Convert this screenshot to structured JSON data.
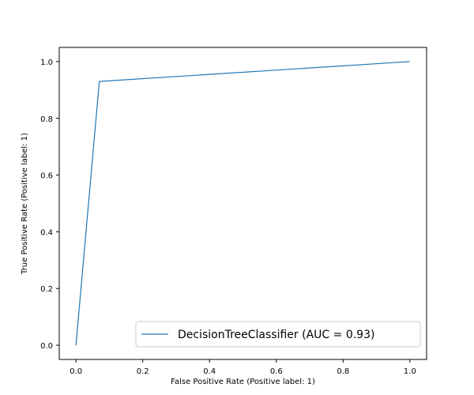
{
  "chart_data": {
    "type": "line",
    "title": "",
    "xlabel": "False Positive Rate (Positive label: 1)",
    "ylabel": "True Positive Rate (Positive label: 1)",
    "xlim": [
      -0.05,
      1.05
    ],
    "ylim": [
      -0.05,
      1.05
    ],
    "xticks": [
      0.0,
      0.2,
      0.4,
      0.6,
      0.8,
      1.0
    ],
    "yticks": [
      0.0,
      0.2,
      0.4,
      0.6,
      0.8,
      1.0
    ],
    "xtick_labels": [
      "0.0",
      "0.2",
      "0.4",
      "0.6",
      "0.8",
      "1.0"
    ],
    "ytick_labels": [
      "0.0",
      "0.2",
      "0.4",
      "0.6",
      "0.8",
      "1.0"
    ],
    "grid": false,
    "legend_position": "lower-right",
    "series": [
      {
        "name": "DecisionTreeClassifier (AUC = 0.93)",
        "color": "#1f77b4",
        "x": [
          0.0,
          0.07,
          1.0
        ],
        "y": [
          0.0,
          0.93,
          1.0
        ]
      }
    ]
  }
}
